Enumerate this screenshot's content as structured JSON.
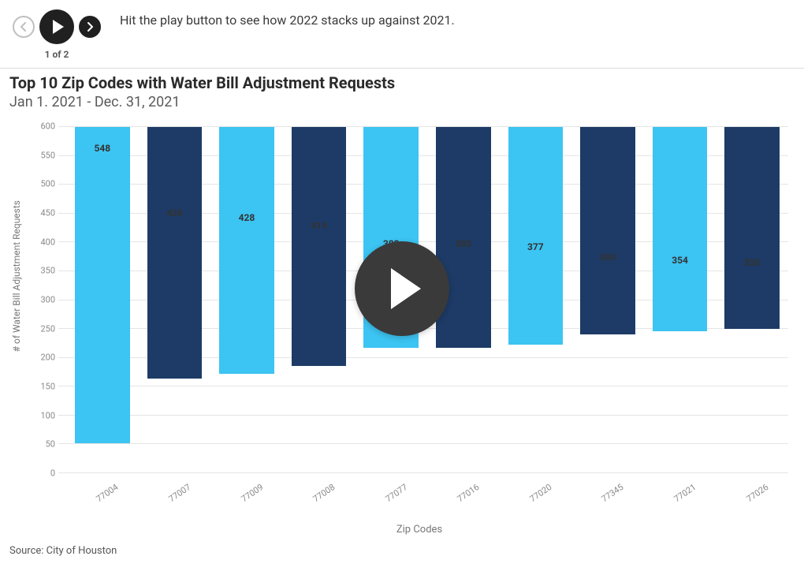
{
  "header": {
    "hint": "Hit the play button to see how 2022 stacks up against 2021.",
    "counter": "1 of 2"
  },
  "title": "Top 10 Zip Codes with Water Bill Adjustment Requests",
  "subtitle": "Jan 1. 2021 - Dec. 31, 2021",
  "source": "Source: City of Houston",
  "chart": {
    "type": "bar",
    "xlabel": "Zip Codes",
    "ylabel": "# of Water Bill Adjustment Requests",
    "ylim": [
      0,
      600
    ],
    "ytick_step": 50,
    "background_color": "#ffffff",
    "grid_color": "#e5e5e5",
    "bar_width": 0.76,
    "label_fontsize": 12,
    "value_label_fontsize": 12,
    "colors": {
      "light": "#3cc4f2",
      "dark": "#1d3b66"
    },
    "categories": [
      "77004",
      "77007",
      "77009",
      "77008",
      "77077",
      "77016",
      "77020",
      "77345",
      "77021",
      "77026"
    ],
    "values": [
      548,
      436,
      428,
      414,
      383,
      383,
      377,
      360,
      354,
      350
    ],
    "bar_colors": [
      "light",
      "dark",
      "light",
      "dark",
      "light",
      "dark",
      "light",
      "dark",
      "light",
      "dark"
    ]
  }
}
